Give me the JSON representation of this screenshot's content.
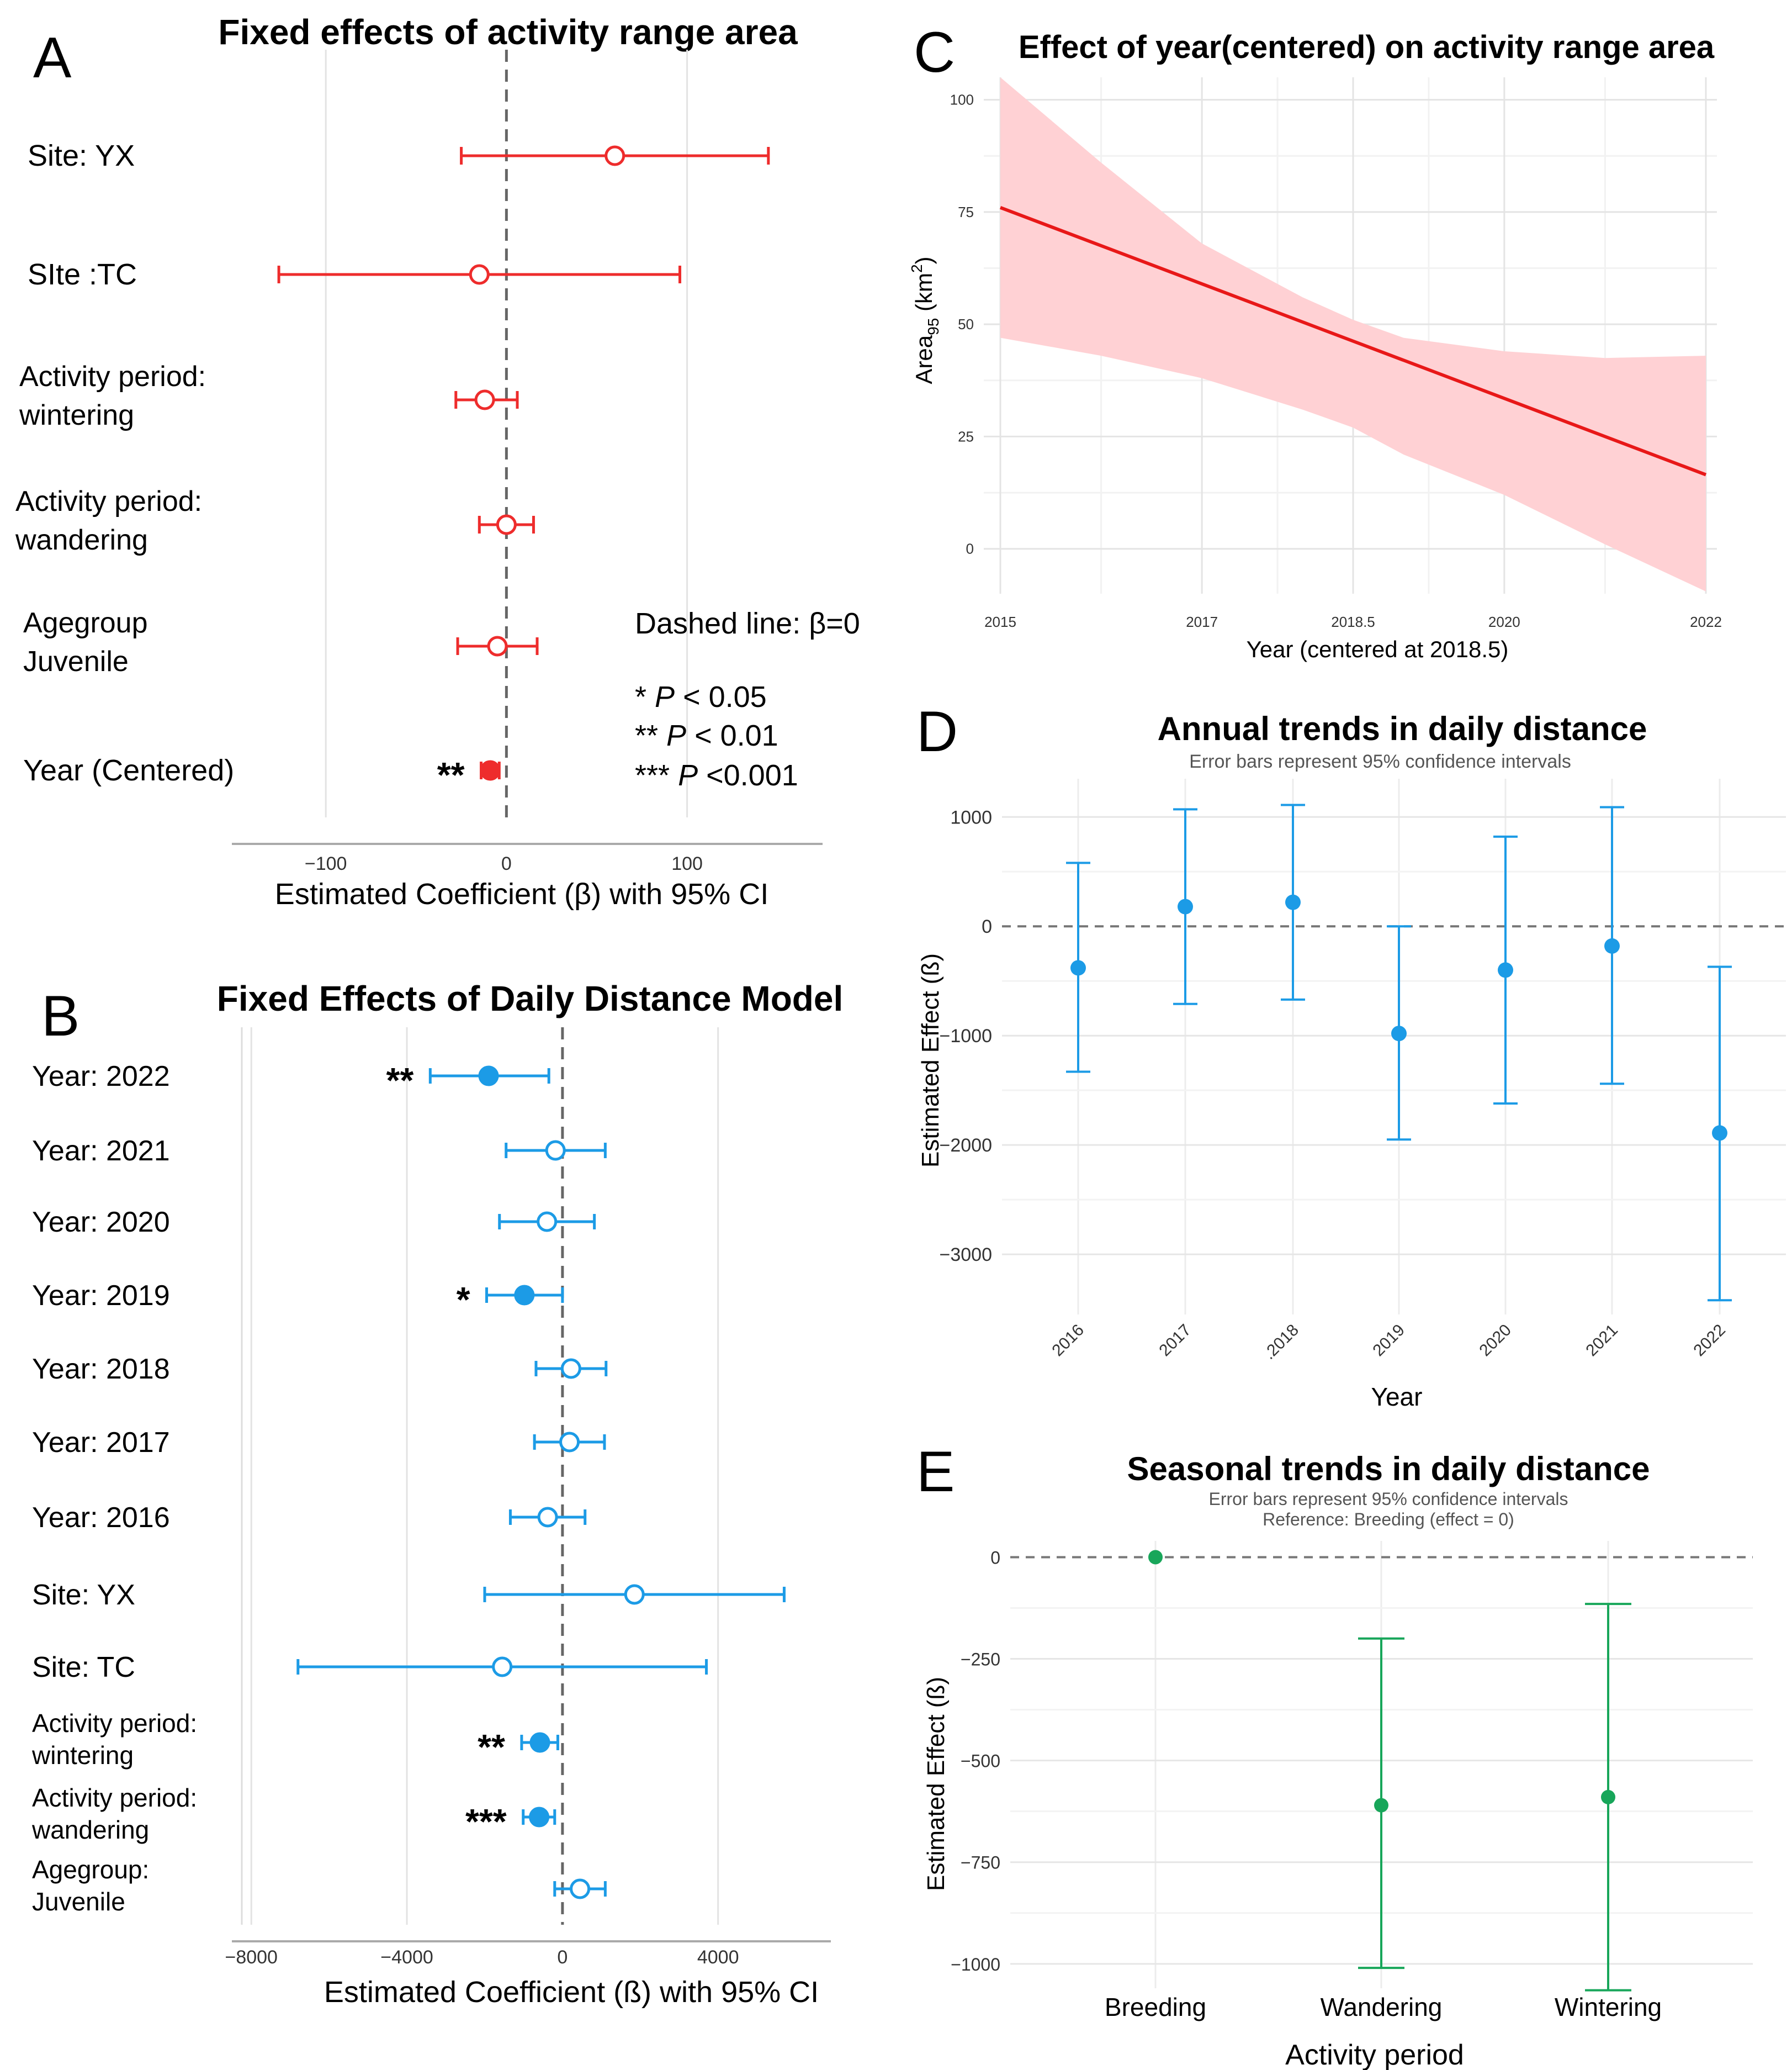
{
  "panels": {
    "A": {
      "letter": "A",
      "title": "Fixed effects of activity range area",
      "xlabel": "Estimated Coefficient (β) with 95% CI",
      "note_lines": [
        "Dashed line: β=0",
        "",
        "* P < 0.05",
        "** P < 0.01",
        "*** P <0.001"
      ],
      "note_stars": [
        "",
        "",
        "*",
        "**",
        "***"
      ],
      "note_p": [
        "",
        "",
        "P",
        "P",
        "P"
      ],
      "note_tail": [
        "Dashed line: β=0",
        "",
        " < 0.05",
        " < 0.01",
        " <0.001"
      ]
    },
    "B": {
      "letter": "B",
      "title": "Fixed Effects of Daily Distance Model",
      "xlabel": "Estimated Coefficient (ß) with 95% CI"
    },
    "C": {
      "letter": "C",
      "title": "Effect of year(centered) on activity range area",
      "xlabel": "Year (centered at 2018.5)",
      "ylabel_main": "Area",
      "ylabel_sub": "95",
      "ylabel_unit": " (km",
      "ylabel_sup": "2",
      "ylabel_close": ")"
    },
    "D": {
      "letter": "D",
      "title": "Annual trends in daily distance",
      "subtitle": "Error bars represent 95% confidence intervals",
      "xlabel": "Year",
      "ylabel": "Estimated Effect (ß)"
    },
    "E": {
      "letter": "E",
      "title": "Seasonal trends in daily distance",
      "subtitle": "Error bars represent 95% confidence intervals",
      "subtitle2": "Reference: Breeding (effect = 0)",
      "xlabel": "Activity period",
      "ylabel": "Estimated Effect (ß)"
    }
  },
  "colors": {
    "A": "#ee2c2c",
    "B": "#1c9be6",
    "C_line": "#e81818",
    "C_band": "#ffd1d4",
    "D": "#1c9be6",
    "E": "#18a65a"
  },
  "chart_data": [
    {
      "id": "A",
      "type": "scatter",
      "title": "Fixed effects of activity range area",
      "xlabel": "Estimated Coefficient (β) with 95% CI",
      "xlim": [
        -152,
        175
      ],
      "xticks": [
        -100,
        0,
        100
      ],
      "reference_line": 0,
      "rows": [
        {
          "label": [
            "Site: YX"
          ],
          "est": 60,
          "lo": -25,
          "hi": 145,
          "sig": false,
          "stars": ""
        },
        {
          "label": [
            "SIte :TC"
          ],
          "est": -15,
          "lo": -126,
          "hi": 96,
          "sig": false,
          "stars": ""
        },
        {
          "label": [
            "Activity period:",
            "wintering"
          ],
          "est": -12,
          "lo": -28,
          "hi": 6,
          "sig": false,
          "stars": ""
        },
        {
          "label": [
            "Activity period:",
            "wandering"
          ],
          "est": 0,
          "lo": -15,
          "hi": 15,
          "sig": false,
          "stars": ""
        },
        {
          "label": [
            "Agegroup",
            "Juvenile"
          ],
          "est": -5,
          "lo": -27,
          "hi": 17,
          "sig": false,
          "stars": ""
        },
        {
          "label": [
            "Year (Centered)"
          ],
          "est": -9,
          "lo": -14,
          "hi": -4,
          "sig": true,
          "stars": "**"
        }
      ]
    },
    {
      "id": "B",
      "type": "scatter",
      "title": "Fixed Effects of Daily Distance Model",
      "xlabel": "Estimated Coefficient (ß) with 95% CI",
      "xlim": [
        -8500,
        6900
      ],
      "xticks": [
        -8000,
        -4000,
        0,
        4000
      ],
      "reference_line": 0,
      "rows": [
        {
          "label": [
            "Year: 2022"
          ],
          "est": -1900,
          "lo": -3400,
          "hi": -350,
          "sig": true,
          "stars": "**"
        },
        {
          "label": [
            "Year: 2021"
          ],
          "est": -180,
          "lo": -1450,
          "hi": 1100,
          "sig": false,
          "stars": ""
        },
        {
          "label": [
            "Year: 2020"
          ],
          "est": -400,
          "lo": -1620,
          "hi": 820,
          "sig": false,
          "stars": ""
        },
        {
          "label": [
            "Year: 2019"
          ],
          "est": -980,
          "lo": -1950,
          "hi": 0,
          "sig": true,
          "stars": "*"
        },
        {
          "label": [
            "Year: 2018"
          ],
          "est": 220,
          "lo": -680,
          "hi": 1120,
          "sig": false,
          "stars": ""
        },
        {
          "label": [
            "Year: 2017"
          ],
          "est": 180,
          "lo": -720,
          "hi": 1080,
          "sig": false,
          "stars": ""
        },
        {
          "label": [
            "Year: 2016"
          ],
          "est": -380,
          "lo": -1340,
          "hi": 580,
          "sig": false,
          "stars": ""
        },
        {
          "label": [
            "Site: YX"
          ],
          "est": 1850,
          "lo": -2000,
          "hi": 5700,
          "sig": false,
          "stars": ""
        },
        {
          "label": [
            "Site: TC"
          ],
          "est": -1550,
          "lo": -6800,
          "hi": 3700,
          "sig": false,
          "stars": ""
        },
        {
          "label": [
            "Activity period:",
            "wintering"
          ],
          "est": -580,
          "lo": -1050,
          "hi": -120,
          "sig": true,
          "stars": "**"
        },
        {
          "label": [
            "Activity period:",
            "wandering"
          ],
          "est": -600,
          "lo": -1010,
          "hi": -200,
          "sig": true,
          "stars": "***"
        },
        {
          "label": [
            "Agegroup:",
            "Juvenile"
          ],
          "est": 450,
          "lo": -200,
          "hi": 1100,
          "sig": false,
          "stars": ""
        }
      ]
    },
    {
      "id": "C",
      "type": "line",
      "title": "Effect of year(centered) on activity range area",
      "xlabel": "Year (centered at 2018.5)",
      "xlim": [
        2015,
        2022
      ],
      "xticks": [
        "2015",
        "2017",
        "2018.5",
        "2020",
        "2022"
      ],
      "ylim": [
        -10,
        105
      ],
      "yticks": [
        "0",
        "25",
        "50",
        "75",
        "100"
      ],
      "line": {
        "x": [
          2015,
          2022
        ],
        "y": [
          76,
          16.5
        ]
      },
      "band_x": [
        2015,
        2016,
        2017,
        2018,
        2018.5,
        2019,
        2020,
        2021,
        2022
      ],
      "band_upper": [
        105,
        86,
        68,
        56,
        51,
        47,
        44,
        42.5,
        43
      ],
      "band_lower": [
        47,
        43,
        38,
        31,
        27,
        21,
        12,
        1,
        -9.5
      ]
    },
    {
      "id": "D",
      "type": "scatter",
      "title": "Annual trends in daily distance",
      "xlabel": "Year",
      "ylabel": "Estimated Effect (ß)",
      "categories": [
        "2016",
        "2017",
        ".2018",
        "2019",
        "2020",
        "2021",
        "2022"
      ],
      "ylim": [
        -3550,
        1350
      ],
      "yticks": [
        "1000",
        "0",
        "−1000",
        "−2000",
        "−3000"
      ],
      "reference_line": 0,
      "est": [
        -380,
        180,
        220,
        -980,
        -400,
        -180,
        -1890
      ],
      "lo": [
        -1330,
        -710,
        -670,
        -1950,
        -1620,
        -1440,
        -3420
      ],
      "hi": [
        580,
        1070,
        1110,
        0,
        820,
        1090,
        -370
      ]
    },
    {
      "id": "E",
      "type": "scatter",
      "title": "Seasonal trends in daily distance",
      "xlabel": "Activity period",
      "ylabel": "Estimated Effect (ß)",
      "categories": [
        "Breeding",
        "Wandering",
        "Wintering"
      ],
      "ylim": [
        -1060,
        40
      ],
      "yticks": [
        "0",
        "−250",
        "−500",
        "−750",
        "−1000"
      ],
      "reference_line": 0,
      "est": [
        0,
        -610,
        -590
      ],
      "lo": [
        0,
        -1010,
        -1065
      ],
      "hi": [
        0,
        -200,
        -115
      ]
    }
  ]
}
